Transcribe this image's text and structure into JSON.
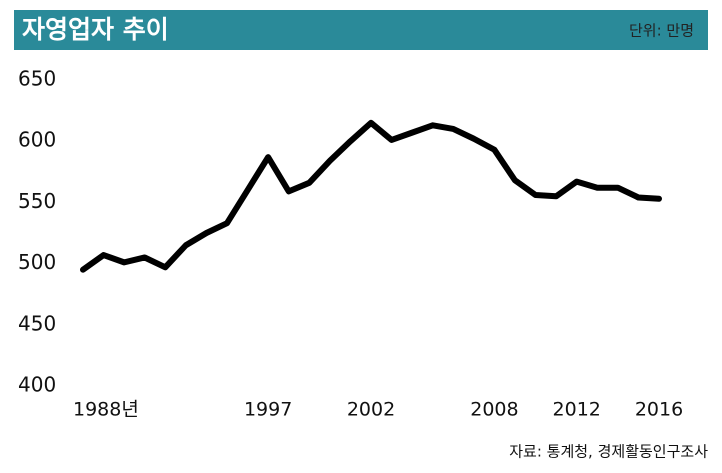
{
  "chart_data": {
    "type": "line",
    "title": "자영업자 추이",
    "unit": "단위: 만명",
    "source": "자료: 통계청, 경제활동인구조사",
    "x": [
      1988,
      1989,
      1990,
      1991,
      1992,
      1993,
      1994,
      1995,
      1996,
      1997,
      1998,
      1999,
      2000,
      2001,
      2002,
      2003,
      2004,
      2005,
      2006,
      2007,
      2008,
      2009,
      2010,
      2011,
      2012,
      2013,
      2014,
      2015,
      2016
    ],
    "series": [
      {
        "color": "#000000",
        "values": [
          495,
          507,
          501,
          505,
          497,
          515,
          525,
          533,
          560,
          587,
          559,
          566,
          584,
          600,
          615,
          601,
          607,
          613,
          610,
          602,
          593,
          568,
          556,
          555,
          567,
          562,
          562,
          554,
          553
        ]
      }
    ],
    "xlim": [
      1988,
      2016
    ],
    "xticks": [
      {
        "value": 1988,
        "label": "1988년"
      },
      1997,
      2002,
      2008,
      2012,
      2016
    ],
    "ylim": [
      400,
      650
    ],
    "yticks": [
      400,
      450,
      500,
      550,
      600,
      650
    ],
    "title_bar_color": "#2a8a99"
  }
}
